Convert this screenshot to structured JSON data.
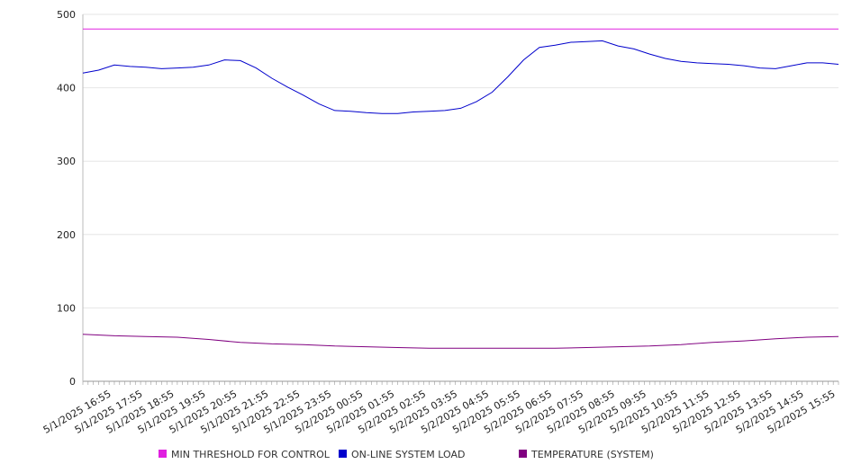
{
  "chart_data": {
    "type": "line",
    "ylim": [
      0,
      500
    ],
    "y_ticks": [
      0,
      100,
      200,
      300,
      400,
      500
    ],
    "grid": true,
    "legend_position": "bottom",
    "x_tick_labels": [
      "5/1/2025 16:55",
      "5/1/2025 17:55",
      "5/1/2025 18:55",
      "5/1/2025 19:55",
      "5/1/2025 20:55",
      "5/1/2025 21:55",
      "5/1/2025 22:55",
      "5/1/2025 23:55",
      "5/2/2025 00:55",
      "5/2/2025 01:55",
      "5/2/2025 02:55",
      "5/2/2025 03:55",
      "5/2/2025 04:55",
      "5/2/2025 05:55",
      "5/2/2025 06:55",
      "5/2/2025 07:55",
      "5/2/2025 08:55",
      "5/2/2025 09:55",
      "5/2/2025 10:55",
      "5/2/2025 11:55",
      "5/2/2025 12:55",
      "5/2/2025 13:55",
      "5/2/2025 14:55",
      "5/2/2025 15:55"
    ],
    "x_range": [
      "5/1/2025 16:00",
      "5/2/2025 16:00"
    ],
    "series": [
      {
        "name": "MIN THRESHOLD FOR CONTROL",
        "color": "#e020e0",
        "x": [
          "5/1/2025 16:00",
          "5/2/2025 16:00"
        ],
        "values": [
          480,
          480
        ]
      },
      {
        "name": "ON-LINE SYSTEM LOAD",
        "color": "#0000cc",
        "x": [
          "5/1/2025 16:00",
          "5/1/2025 16:30",
          "5/1/2025 17:00",
          "5/1/2025 17:30",
          "5/1/2025 18:00",
          "5/1/2025 18:30",
          "5/1/2025 19:00",
          "5/1/2025 19:30",
          "5/1/2025 20:00",
          "5/1/2025 20:30",
          "5/1/2025 21:00",
          "5/1/2025 21:30",
          "5/1/2025 22:00",
          "5/1/2025 22:30",
          "5/1/2025 23:00",
          "5/1/2025 23:30",
          "5/2/2025 00:00",
          "5/2/2025 00:30",
          "5/2/2025 01:00",
          "5/2/2025 01:30",
          "5/2/2025 02:00",
          "5/2/2025 02:30",
          "5/2/2025 03:00",
          "5/2/2025 03:30",
          "5/2/2025 04:00",
          "5/2/2025 04:30",
          "5/2/2025 05:00",
          "5/2/2025 05:30",
          "5/2/2025 06:00",
          "5/2/2025 06:30",
          "5/2/2025 07:00",
          "5/2/2025 07:30",
          "5/2/2025 08:00",
          "5/2/2025 08:30",
          "5/2/2025 09:00",
          "5/2/2025 09:30",
          "5/2/2025 10:00",
          "5/2/2025 10:30",
          "5/2/2025 11:00",
          "5/2/2025 11:30",
          "5/2/2025 12:00",
          "5/2/2025 12:30",
          "5/2/2025 13:00",
          "5/2/2025 13:30",
          "5/2/2025 14:00",
          "5/2/2025 14:30",
          "5/2/2025 15:00",
          "5/2/2025 15:30",
          "5/2/2025 16:00"
        ],
        "values": [
          420,
          424,
          431,
          429,
          428,
          426,
          427,
          428,
          431,
          438,
          437,
          427,
          413,
          401,
          390,
          378,
          369,
          368,
          366,
          365,
          365,
          367,
          368,
          369,
          372,
          381,
          394,
          415,
          438,
          455,
          458,
          462,
          463,
          464,
          457,
          453,
          446,
          440,
          436,
          434,
          433,
          432,
          430,
          427,
          426,
          430,
          434,
          434,
          432
        ]
      },
      {
        "name": "TEMPERATURE (SYSTEM)",
        "color": "#800080",
        "x": [
          "5/1/2025 16:00",
          "5/1/2025 17:00",
          "5/1/2025 18:00",
          "5/1/2025 19:00",
          "5/1/2025 20:00",
          "5/1/2025 21:00",
          "5/1/2025 22:00",
          "5/1/2025 23:00",
          "5/2/2025 00:00",
          "5/2/2025 01:00",
          "5/2/2025 02:00",
          "5/2/2025 03:00",
          "5/2/2025 04:00",
          "5/2/2025 05:00",
          "5/2/2025 06:00",
          "5/2/2025 07:00",
          "5/2/2025 08:00",
          "5/2/2025 09:00",
          "5/2/2025 10:00",
          "5/2/2025 11:00",
          "5/2/2025 12:00",
          "5/2/2025 13:00",
          "5/2/2025 14:00",
          "5/2/2025 15:00",
          "5/2/2025 16:00"
        ],
        "values": [
          64,
          62,
          61,
          60,
          57,
          53,
          51,
          50,
          48,
          47,
          46,
          45,
          45,
          45,
          45,
          45,
          46,
          47,
          48,
          50,
          53,
          55,
          58,
          60,
          61
        ]
      }
    ]
  }
}
